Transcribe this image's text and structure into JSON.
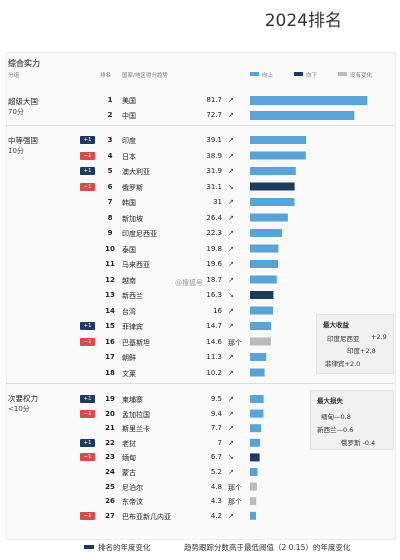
{
  "title": "2024排名",
  "header": {
    "section_title": "综合实力",
    "col_tier": "分组",
    "col_rank": "排名",
    "col_country": "国家/地区得分趋势",
    "legend": [
      {
        "label": "向上",
        "color": "#5aa3d6"
      },
      {
        "label": "向下",
        "color": "#1e3a5f"
      },
      {
        "label": "没有变化",
        "color": "#bbbbbb"
      }
    ]
  },
  "tiers": [
    {
      "name": "超级大国",
      "sub": "70分"
    },
    {
      "name": "中等强国",
      "sub": "10分"
    },
    {
      "name": "次要权力",
      "sub": "<10分"
    }
  ],
  "watermark": "@搜狐号",
  "side_boxes": [
    {
      "title": "最大收益",
      "lines": [
        "印度尼西亚",
        "+2.9",
        "印度+2.8",
        "菲律宾+2.0"
      ]
    },
    {
      "title": "最大损失",
      "lines": [
        "缅甸—0.8",
        "新西兰—0.6",
        "俄罗斯 -0.4"
      ]
    }
  ],
  "footer": {
    "legend1": "排名的年度变化",
    "legend2": "趋势跟踪分数高于最低阈值（2 0.15）的年度变化"
  },
  "chart_data": {
    "type": "bar",
    "title": "2024排名",
    "xlim": [
      0,
      85
    ],
    "rows": [
      {
        "rank": "1",
        "country": "美国",
        "score": 81.7,
        "change": "",
        "trend": "↗",
        "bar": "up"
      },
      {
        "rank": "2",
        "country": "中国",
        "score": 72.7,
        "change": "",
        "trend": "↗",
        "bar": "up"
      },
      {
        "rank": "3",
        "country": "印度",
        "score": 39.1,
        "change": "+1",
        "trend": "↗",
        "bar": "up"
      },
      {
        "rank": "4",
        "country": "日本",
        "score": 38.9,
        "change": "−1",
        "trend": "↗",
        "bar": "up"
      },
      {
        "rank": "5",
        "country": "澳大利亚",
        "score": 31.9,
        "change": "+1",
        "trend": "↗",
        "bar": "up"
      },
      {
        "rank": "6",
        "country": "俄罗斯",
        "score": 31.1,
        "change": "−1",
        "trend": "↘",
        "bar": "down"
      },
      {
        "rank": "7",
        "country": "韩国",
        "score": 31.0,
        "change": "",
        "trend": "↗",
        "bar": "up"
      },
      {
        "rank": "8",
        "country": "新加坡",
        "score": 26.4,
        "change": "",
        "trend": "↗",
        "bar": "up"
      },
      {
        "rank": "9",
        "country": "印度尼西亚",
        "score": 22.3,
        "change": "",
        "trend": "↗",
        "bar": "up"
      },
      {
        "rank": "10",
        "country": "泰国",
        "score": 19.8,
        "change": "",
        "trend": "↗",
        "bar": "up"
      },
      {
        "rank": "11",
        "country": "马来西亚",
        "score": 19.6,
        "change": "",
        "trend": "↗",
        "bar": "up"
      },
      {
        "rank": "12",
        "country": "越南",
        "score": 18.7,
        "change": "",
        "trend": "↗",
        "bar": "up"
      },
      {
        "rank": "13",
        "country": "新西兰",
        "score": 16.3,
        "change": "",
        "trend": "↘",
        "bar": "down"
      },
      {
        "rank": "14",
        "country": "台湾",
        "score": 16.0,
        "change": "",
        "trend": "↗",
        "bar": "up"
      },
      {
        "rank": "15",
        "country": "菲律宾",
        "score": 14.7,
        "change": "+1",
        "trend": "↗",
        "bar": "up"
      },
      {
        "rank": "16",
        "country": "巴基斯坦",
        "score": 14.6,
        "change": "−1",
        "trend": "那个",
        "bar": "flat"
      },
      {
        "rank": "17",
        "country": "朝鲜",
        "score": 11.3,
        "change": "",
        "trend": "↗",
        "bar": "up"
      },
      {
        "rank": "18",
        "country": "文莱",
        "score": 10.2,
        "change": "",
        "trend": "↗",
        "bar": "up"
      },
      {
        "rank": "19",
        "country": "柬埔寨",
        "score": 9.5,
        "change": "+1",
        "trend": "↗",
        "bar": "up"
      },
      {
        "rank": "20",
        "country": "孟加拉国",
        "score": 9.4,
        "change": "−1",
        "trend": "↗",
        "bar": "up"
      },
      {
        "rank": "21",
        "country": "斯里兰卡",
        "score": 7.7,
        "change": "",
        "trend": "↗",
        "bar": "up"
      },
      {
        "rank": "22",
        "country": "老挝",
        "score": 7.0,
        "change": "+1",
        "trend": "↗",
        "bar": "up"
      },
      {
        "rank": "23",
        "country": "缅甸",
        "score": 6.7,
        "change": "−1",
        "trend": "↘",
        "bar": "down"
      },
      {
        "rank": "24",
        "country": "蒙古",
        "score": 5.2,
        "change": "",
        "trend": "↗",
        "bar": "up"
      },
      {
        "rank": "25",
        "country": "尼泊尔",
        "score": 4.8,
        "change": "",
        "trend": "那个",
        "bar": "flat"
      },
      {
        "rank": "26",
        "country": "东帝汶",
        "score": 4.3,
        "change": "",
        "trend": "那个",
        "bar": "flat"
      },
      {
        "rank": "27",
        "country": "巴布亚新几内亚",
        "score": 4.2,
        "change": "−1",
        "trend": "↗",
        "bar": "up"
      }
    ]
  }
}
